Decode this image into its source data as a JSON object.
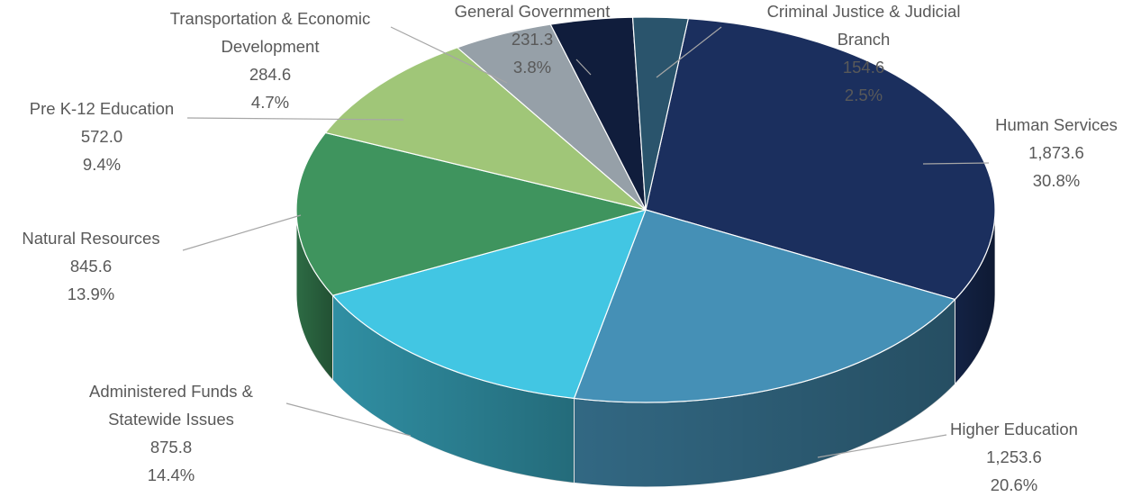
{
  "chart_data": {
    "type": "pie",
    "style": "3d-exploded-none",
    "units": "",
    "slices": [
      {
        "label": "Human Services",
        "label_lines": [
          "Human Services"
        ],
        "value": 1873.6,
        "value_text": "1,873.6",
        "percent_text": "30.8%",
        "color": "#1B2F5E"
      },
      {
        "label": "Higher Education",
        "label_lines": [
          "Higher Education"
        ],
        "value": 1253.6,
        "value_text": "1,253.6",
        "percent_text": "20.6%",
        "color": "#4590B6"
      },
      {
        "label": "Administered Funds & Statewide Issues",
        "label_lines": [
          "Administered Funds &",
          "Statewide Issues"
        ],
        "value": 875.8,
        "value_text": "875.8",
        "percent_text": "14.4%",
        "color": "#42C6E3"
      },
      {
        "label": "Natural Resources",
        "label_lines": [
          "Natural Resources"
        ],
        "value": 845.6,
        "value_text": "845.6",
        "percent_text": "13.9%",
        "color": "#3F945E"
      },
      {
        "label": "Pre K-12 Education",
        "label_lines": [
          "Pre K-12 Education"
        ],
        "value": 572.0,
        "value_text": "572.0",
        "percent_text": "9.4%",
        "color": "#A0C678"
      },
      {
        "label": "Transportation & Economic Development",
        "label_lines": [
          "Transportation & Economic",
          "Development"
        ],
        "value": 284.6,
        "value_text": "284.6",
        "percent_text": "4.7%",
        "color": "#96A0A8"
      },
      {
        "label": "General Government",
        "label_lines": [
          "General Government"
        ],
        "value": 231.3,
        "value_text": "231.3",
        "percent_text": "3.8%",
        "color": "#101D3C"
      },
      {
        "label": "Criminal Justice & Judicial Branch",
        "label_lines": [
          "Criminal Justice & Judicial",
          "Branch"
        ],
        "value": 154.6,
        "value_text": "154.6",
        "percent_text": "2.5%",
        "color": "#2A546C"
      }
    ],
    "legend": "none",
    "data_labels": "outside with leader lines"
  }
}
